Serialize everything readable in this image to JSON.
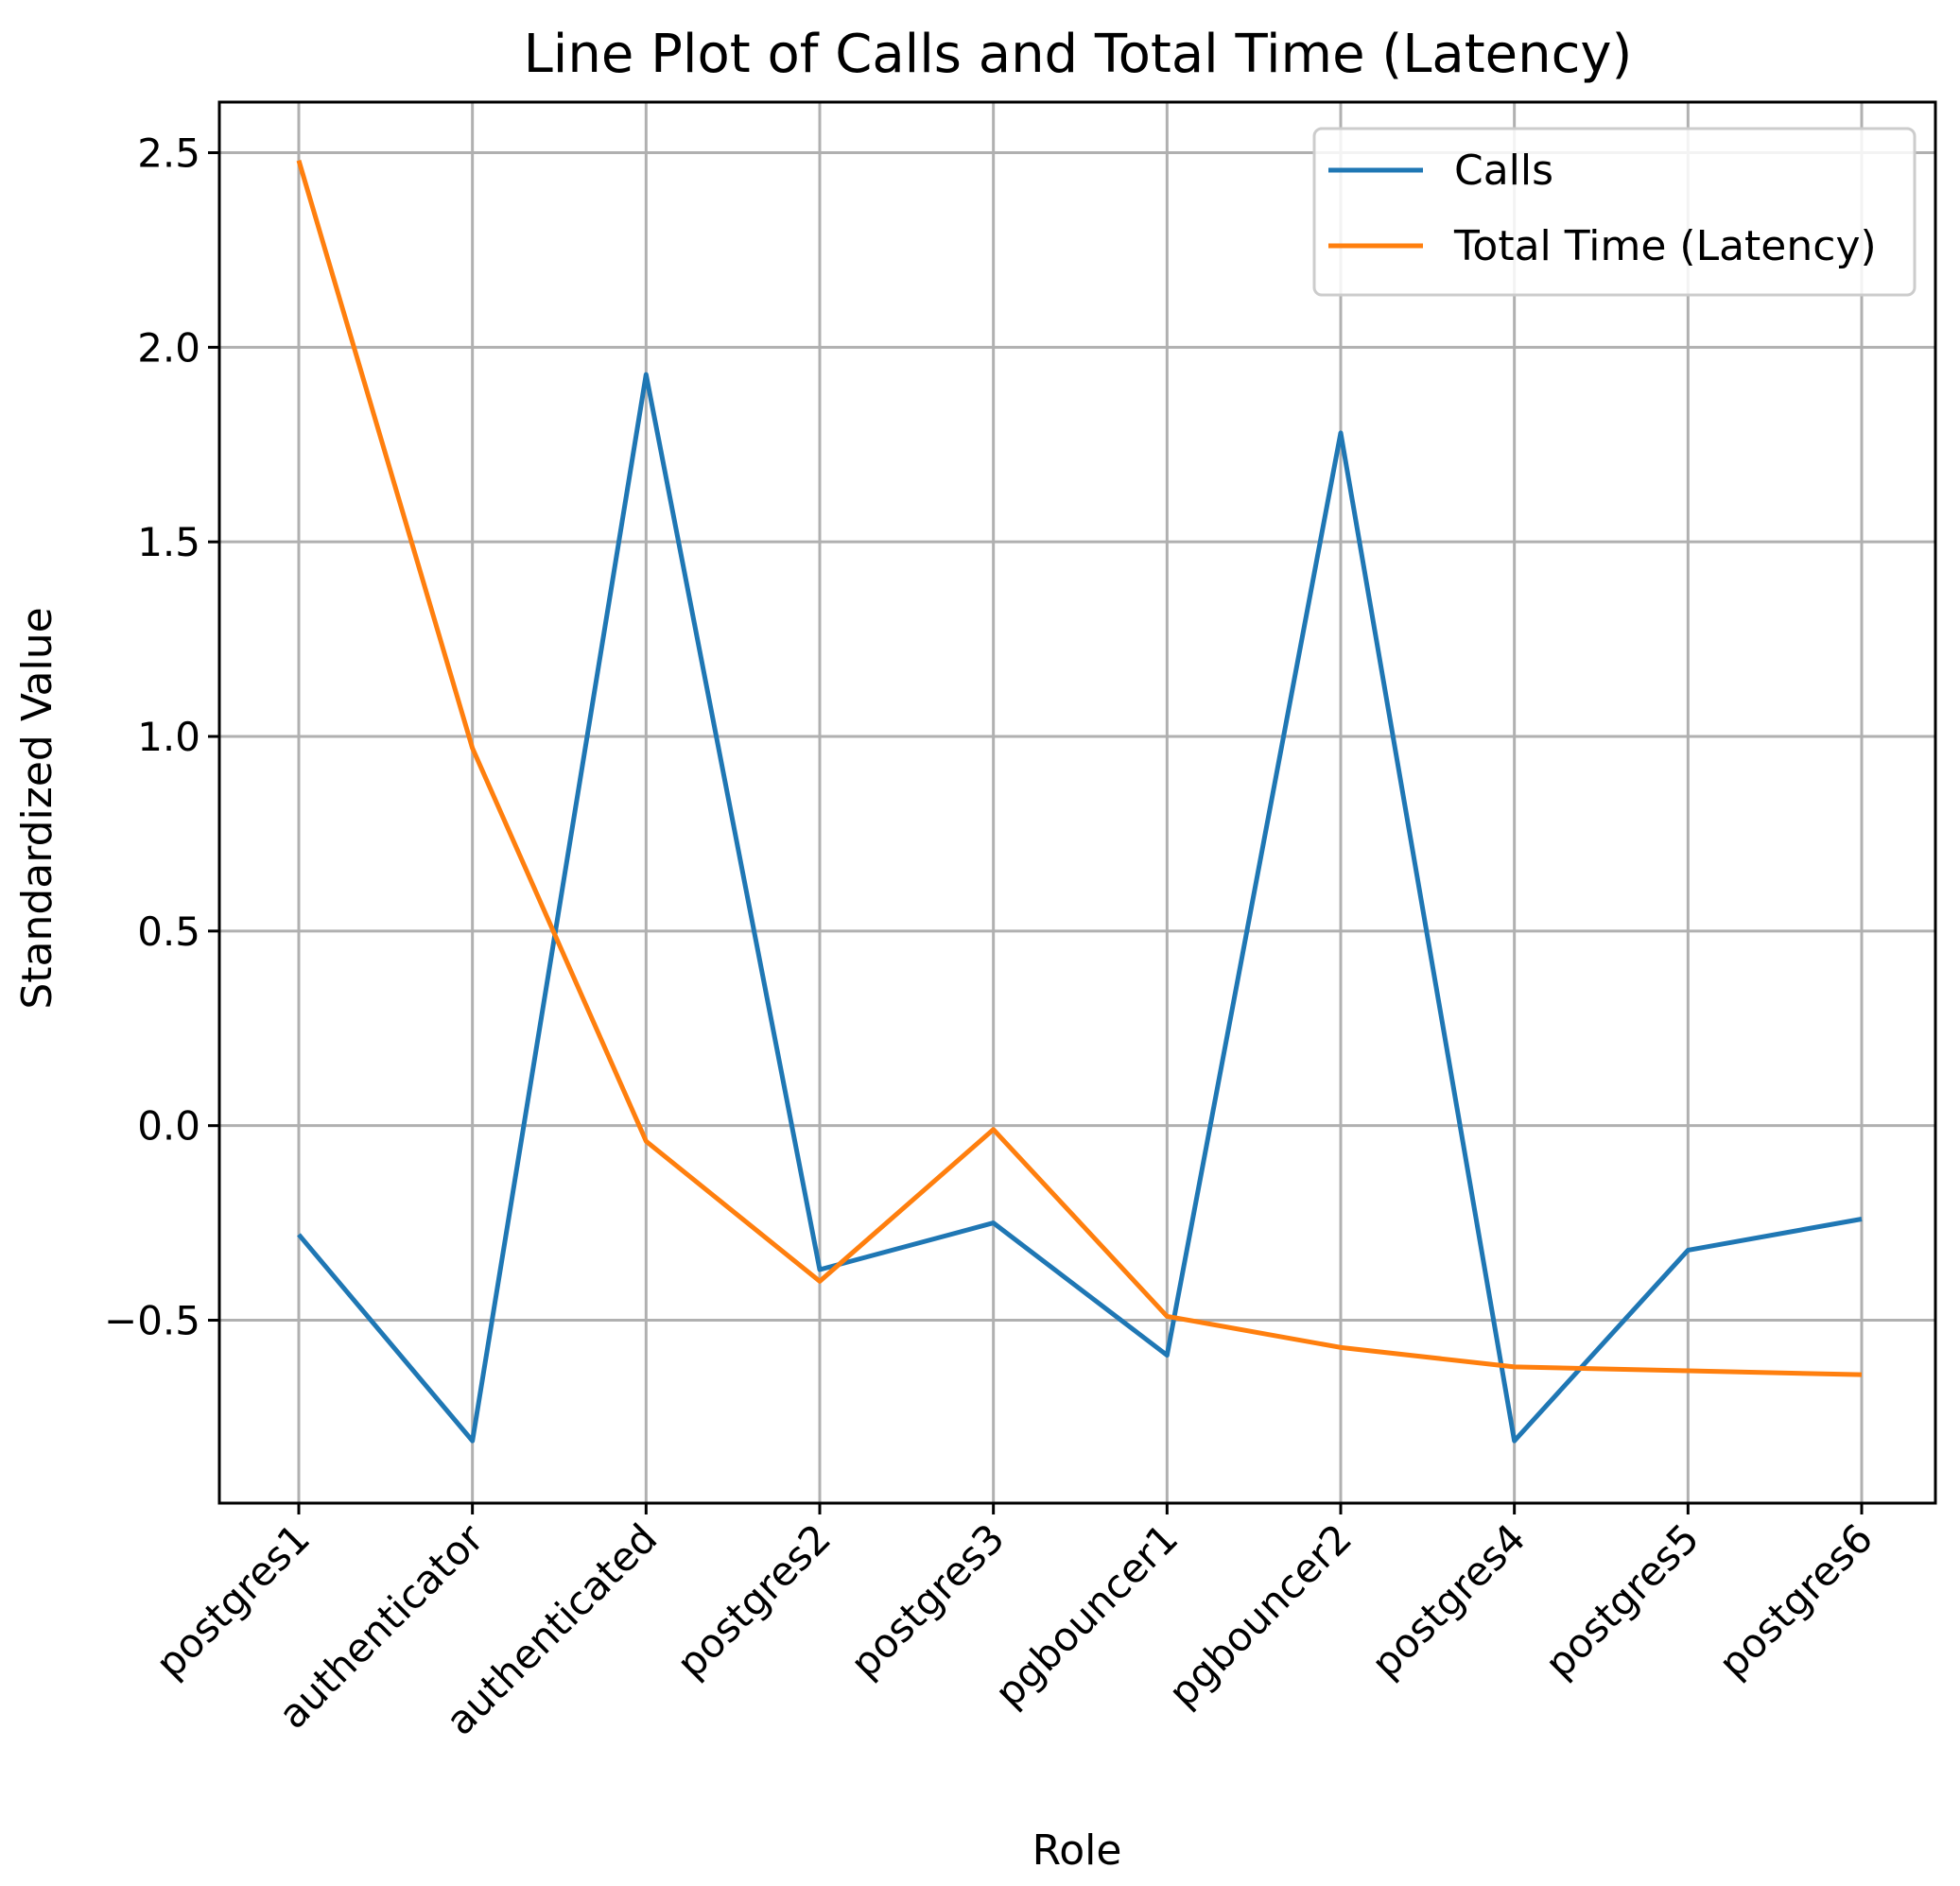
{
  "chart_data": {
    "type": "line",
    "title": "Line Plot of Calls and Total Time (Latency)",
    "xlabel": "Role",
    "ylabel": "Standardized Value",
    "categories": [
      "postgres1",
      "authenticator",
      "authenticated",
      "postgres2",
      "postgres3",
      "pgbouncer1",
      "pgbouncer2",
      "postgres4",
      "postgres5",
      "postgres6"
    ],
    "yticks": [
      2.5,
      2.0,
      1.5,
      1.0,
      0.5,
      0.0,
      -0.5
    ],
    "ytick_labels": [
      "2.5",
      "2.0",
      "1.5",
      "1.0",
      "0.5",
      "0.0",
      "−0.5"
    ],
    "ylim": [
      -0.97,
      2.63
    ],
    "grid": true,
    "legend_position": "top-right",
    "series": [
      {
        "name": "Calls",
        "color": "#1f77b4",
        "values": [
          -0.28,
          -0.81,
          1.93,
          -0.37,
          -0.25,
          -0.59,
          1.78,
          -0.81,
          -0.32,
          -0.24
        ]
      },
      {
        "name": "Total Time (Latency)",
        "color": "#ff7f0e",
        "values": [
          2.48,
          0.97,
          -0.04,
          -0.4,
          -0.01,
          -0.49,
          -0.57,
          -0.62,
          -0.63,
          -0.64
        ]
      }
    ]
  }
}
